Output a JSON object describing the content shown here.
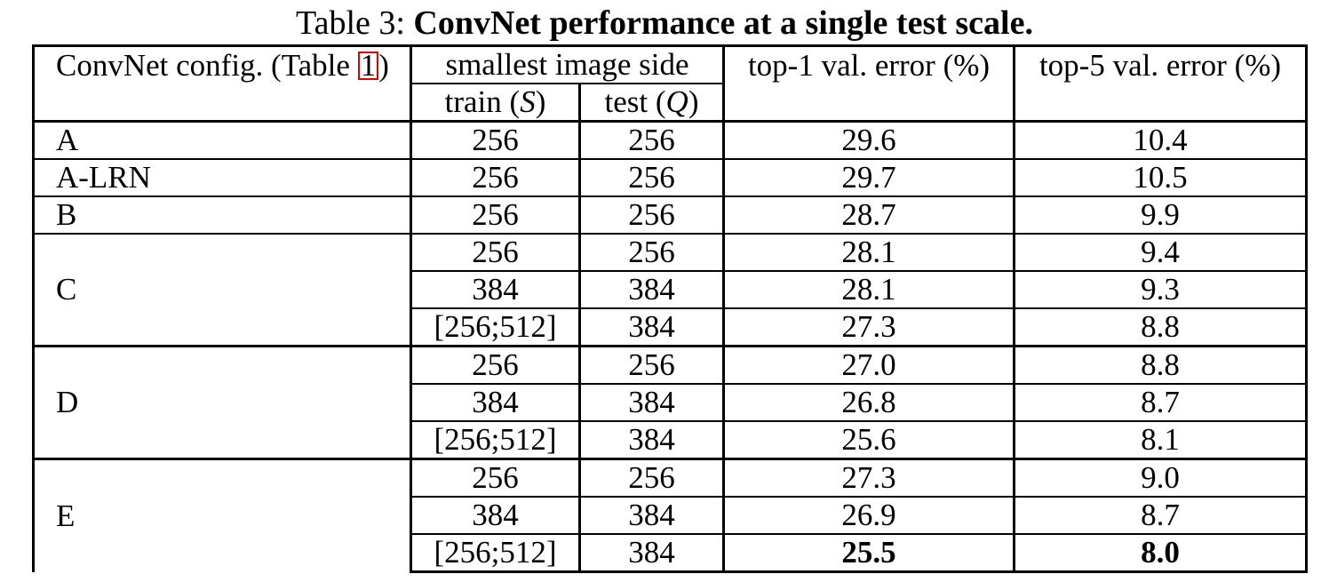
{
  "caption": {
    "prefix": "Table 3:",
    "title": "ConvNet performance at a single test scale."
  },
  "header": {
    "config": "ConvNet config. (Table ",
    "config_ref": "1",
    "config_end": ")",
    "image_side": "smallest image side",
    "train": "train (",
    "train_var": "S",
    "test": "test (",
    "test_var": "Q",
    "close": ")",
    "top1": "top-1 val. error (%)",
    "top5": "top-5 val. error (%)"
  },
  "rows": [
    {
      "config": "A",
      "train": "256",
      "test": "256",
      "top1": "29.6",
      "top5": "10.4"
    },
    {
      "config": "A-LRN",
      "train": "256",
      "test": "256",
      "top1": "29.7",
      "top5": "10.5"
    },
    {
      "config": "B",
      "train": "256",
      "test": "256",
      "top1": "28.7",
      "top5": "9.9"
    },
    {
      "config": "C",
      "train": "256",
      "test": "256",
      "top1": "28.1",
      "top5": "9.4"
    },
    {
      "config": "",
      "train": "384",
      "test": "384",
      "top1": "28.1",
      "top5": "9.3"
    },
    {
      "config": "",
      "train": "[256;512]",
      "test": "384",
      "top1": "27.3",
      "top5": "8.8"
    },
    {
      "config": "D",
      "train": "256",
      "test": "256",
      "top1": "27.0",
      "top5": "8.8"
    },
    {
      "config": "",
      "train": "384",
      "test": "384",
      "top1": "26.8",
      "top5": "8.7"
    },
    {
      "config": "",
      "train": "[256;512]",
      "test": "384",
      "top1": "25.6",
      "top5": "8.1"
    },
    {
      "config": "E",
      "train": "256",
      "test": "256",
      "top1": "27.3",
      "top5": "9.0"
    },
    {
      "config": "",
      "train": "384",
      "test": "384",
      "top1": "26.9",
      "top5": "8.7"
    },
    {
      "config": "",
      "train": "[256;512]",
      "test": "384",
      "top1": "25.5",
      "top5": "8.0"
    }
  ]
}
